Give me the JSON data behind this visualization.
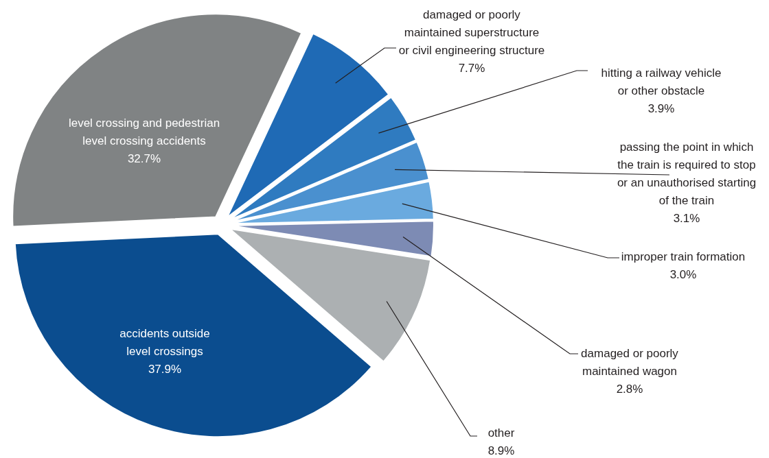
{
  "chart_data": {
    "type": "pie",
    "categories": [
      "damaged or poorly maintained superstructure or civil engineering structure",
      "hitting a railway vehicle or other obstacle",
      "passing the point in which the train is required to stop or an unauthorised starting of the train",
      "improper train formation",
      "damaged or poorly maintained wagon",
      "other",
      "accidents outside level crossings",
      "level crossing and pedestrian level crossing accidents"
    ],
    "values": [
      7.7,
      3.9,
      3.1,
      3.0,
      2.8,
      8.9,
      37.9,
      32.7
    ],
    "value_labels": [
      "7.7%",
      "3.9%",
      "3.1%",
      "3.0%",
      "2.8%",
      "8.9%",
      "37.9%",
      "32.7%"
    ],
    "colors": [
      "#1f6ab5",
      "#2f7bc0",
      "#4a90cf",
      "#6aaadf",
      "#7d8bb4",
      "#acb0b2",
      "#0b4d8f",
      "#808384"
    ]
  }
}
